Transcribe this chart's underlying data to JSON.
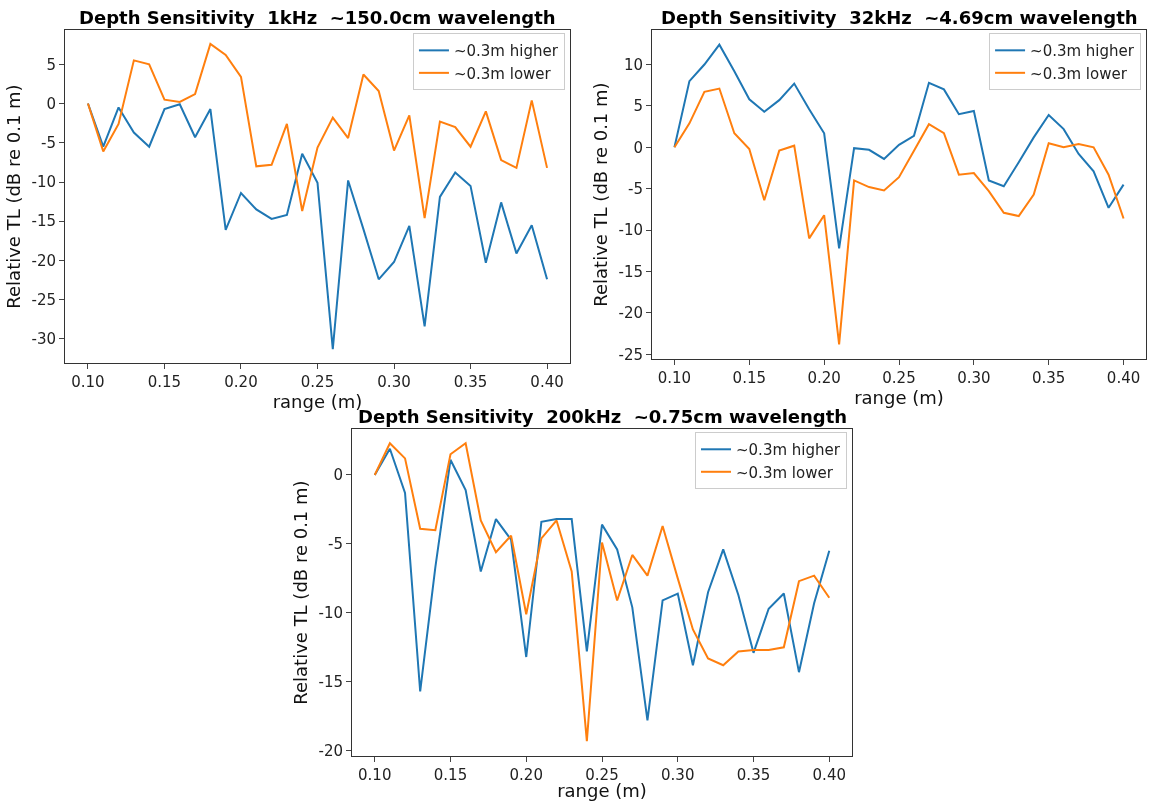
{
  "chart_data": [
    {
      "type": "line",
      "title": "Depth Sensitivity  1kHz  ~150.0cm wavelength",
      "xlabel": "range (m)",
      "ylabel": "Relative TL (dB re 0.1 m)",
      "x": [
        0.1,
        0.11,
        0.12,
        0.13,
        0.14,
        0.15,
        0.16,
        0.17,
        0.18,
        0.19,
        0.2,
        0.21,
        0.22,
        0.23,
        0.24,
        0.25,
        0.26,
        0.27,
        0.28,
        0.29,
        0.3,
        0.31,
        0.32,
        0.33,
        0.34,
        0.35,
        0.36,
        0.37,
        0.38,
        0.39,
        0.4
      ],
      "series": [
        {
          "name": "~0.3m higher",
          "color": "#1f77b4",
          "values": [
            0,
            -5.5,
            -0.5,
            -3.7,
            -5.5,
            -0.7,
            -0.1,
            -4.3,
            -0.7,
            -16.1,
            -11.4,
            -13.5,
            -14.7,
            -14.2,
            -6.4,
            -10.1,
            -31.3,
            -9.8,
            -16.0,
            -22.4,
            -20.2,
            -15.6,
            -28.4,
            -11.9,
            -8.8,
            -10.5,
            -20.3,
            -12.6,
            -19.1,
            -15.5,
            -22.4
          ]
        },
        {
          "name": "~0.3m lower",
          "color": "#ff7f0e",
          "values": [
            0,
            -6.1,
            -2.6,
            5.5,
            5.0,
            0.5,
            0.2,
            1.2,
            7.6,
            6.2,
            3.4,
            -8.0,
            -7.8,
            -2.6,
            -13.7,
            -5.6,
            -1.8,
            -4.4,
            3.7,
            1.6,
            -6.0,
            -1.5,
            -14.6,
            -2.3,
            -3.0,
            -5.5,
            -1.0,
            -7.2,
            -8.2,
            0.4,
            -8.2
          ]
        }
      ],
      "xlim": [
        0.085,
        0.415
      ],
      "ylim": [
        -33.1,
        9.4
      ],
      "xticks": [
        {
          "value": 0.1,
          "label": "0.10"
        },
        {
          "value": 0.15,
          "label": "0.15"
        },
        {
          "value": 0.2,
          "label": "0.20"
        },
        {
          "value": 0.25,
          "label": "0.25"
        },
        {
          "value": 0.3,
          "label": "0.30"
        },
        {
          "value": 0.35,
          "label": "0.35"
        },
        {
          "value": 0.4,
          "label": "0.40"
        }
      ],
      "yticks": [
        -30,
        -25,
        -20,
        -15,
        -10,
        -5,
        0,
        5
      ],
      "legend": "top right",
      "line_style": "solid"
    },
    {
      "type": "line",
      "title": "Depth Sensitivity  32kHz  ~4.69cm wavelength",
      "xlabel": "range (m)",
      "ylabel": "Relative TL (dB re 0.1 m)",
      "x": [
        0.1,
        0.11,
        0.12,
        0.13,
        0.14,
        0.15,
        0.16,
        0.17,
        0.18,
        0.19,
        0.2,
        0.21,
        0.22,
        0.23,
        0.24,
        0.25,
        0.26,
        0.27,
        0.28,
        0.29,
        0.3,
        0.31,
        0.32,
        0.33,
        0.34,
        0.35,
        0.36,
        0.37,
        0.38,
        0.39,
        0.4
      ],
      "series": [
        {
          "name": "~0.3m higher",
          "color": "#1f77b4",
          "values": [
            0,
            8.0,
            10.0,
            12.4,
            9.2,
            5.8,
            4.3,
            5.7,
            7.7,
            4.6,
            1.7,
            -12.2,
            -0.1,
            -0.3,
            -1.4,
            0.3,
            1.4,
            7.8,
            7.0,
            4.0,
            4.4,
            -4.0,
            -4.7,
            -1.8,
            1.2,
            3.9,
            2.2,
            -0.8,
            -2.9,
            -7.3,
            -4.5
          ]
        },
        {
          "name": "~0.3m lower",
          "color": "#ff7f0e",
          "values": [
            0,
            2.9,
            6.7,
            7.1,
            1.7,
            -0.2,
            -6.4,
            -0.4,
            0.2,
            -11.0,
            -8.2,
            -23.8,
            -4.0,
            -4.8,
            -5.2,
            -3.6,
            -0.4,
            2.8,
            1.7,
            -3.3,
            -3.1,
            -5.3,
            -7.9,
            -8.3,
            -5.7,
            0.5,
            0.0,
            0.4,
            0.0,
            -3.3,
            -8.6
          ]
        }
      ],
      "xlim": [
        0.085,
        0.415
      ],
      "ylim": [
        -25.6,
        14.2
      ],
      "xticks": [
        {
          "value": 0.1,
          "label": "0.10"
        },
        {
          "value": 0.15,
          "label": "0.15"
        },
        {
          "value": 0.2,
          "label": "0.20"
        },
        {
          "value": 0.25,
          "label": "0.25"
        },
        {
          "value": 0.3,
          "label": "0.30"
        },
        {
          "value": 0.35,
          "label": "0.35"
        },
        {
          "value": 0.4,
          "label": "0.40"
        }
      ],
      "yticks": [
        -25,
        -20,
        -15,
        -10,
        -5,
        0,
        5,
        10
      ],
      "legend": "top right",
      "line_style": "solid"
    },
    {
      "type": "line",
      "title": "Depth Sensitivity  200kHz  ~0.75cm wavelength",
      "xlabel": "range (m)",
      "ylabel": "Relative TL (dB re 0.1 m)",
      "x": [
        0.1,
        0.11,
        0.12,
        0.13,
        0.14,
        0.15,
        0.16,
        0.17,
        0.18,
        0.19,
        0.2,
        0.21,
        0.22,
        0.23,
        0.24,
        0.25,
        0.26,
        0.27,
        0.28,
        0.29,
        0.3,
        0.31,
        0.32,
        0.33,
        0.34,
        0.35,
        0.36,
        0.37,
        0.38,
        0.39,
        0.4
      ],
      "series": [
        {
          "name": "~0.3m higher",
          "color": "#1f77b4",
          "values": [
            0,
            1.9,
            -1.3,
            -15.7,
            -6.7,
            1.1,
            -1.1,
            -7.0,
            -3.2,
            -4.7,
            -13.2,
            -3.4,
            -3.2,
            -3.2,
            -12.8,
            -3.6,
            -5.4,
            -9.6,
            -17.8,
            -9.1,
            -8.6,
            -13.8,
            -8.5,
            -5.4,
            -8.7,
            -12.9,
            -9.7,
            -8.6,
            -14.3,
            -9.3,
            -5.5
          ]
        },
        {
          "name": "~0.3m lower",
          "color": "#ff7f0e",
          "values": [
            0,
            2.3,
            1.2,
            -3.9,
            -4.0,
            1.5,
            2.3,
            -3.3,
            -5.6,
            -4.4,
            -10.1,
            -4.6,
            -3.3,
            -7.0,
            -19.3,
            -4.9,
            -9.1,
            -5.8,
            -7.3,
            -3.7,
            -7.5,
            -11.2,
            -13.3,
            -13.8,
            -12.8,
            -12.7,
            -12.7,
            -12.5,
            -7.7,
            -7.3,
            -8.9
          ]
        }
      ],
      "xlim": [
        0.085,
        0.415
      ],
      "ylim": [
        -20.4,
        3.35
      ],
      "xticks": [
        {
          "value": 0.1,
          "label": "0.10"
        },
        {
          "value": 0.15,
          "label": "0.15"
        },
        {
          "value": 0.2,
          "label": "0.20"
        },
        {
          "value": 0.25,
          "label": "0.25"
        },
        {
          "value": 0.3,
          "label": "0.30"
        },
        {
          "value": 0.35,
          "label": "0.35"
        },
        {
          "value": 0.4,
          "label": "0.40"
        }
      ],
      "yticks": [
        -20,
        -15,
        -10,
        -5,
        0
      ],
      "legend": "top right",
      "line_style": "solid"
    }
  ]
}
